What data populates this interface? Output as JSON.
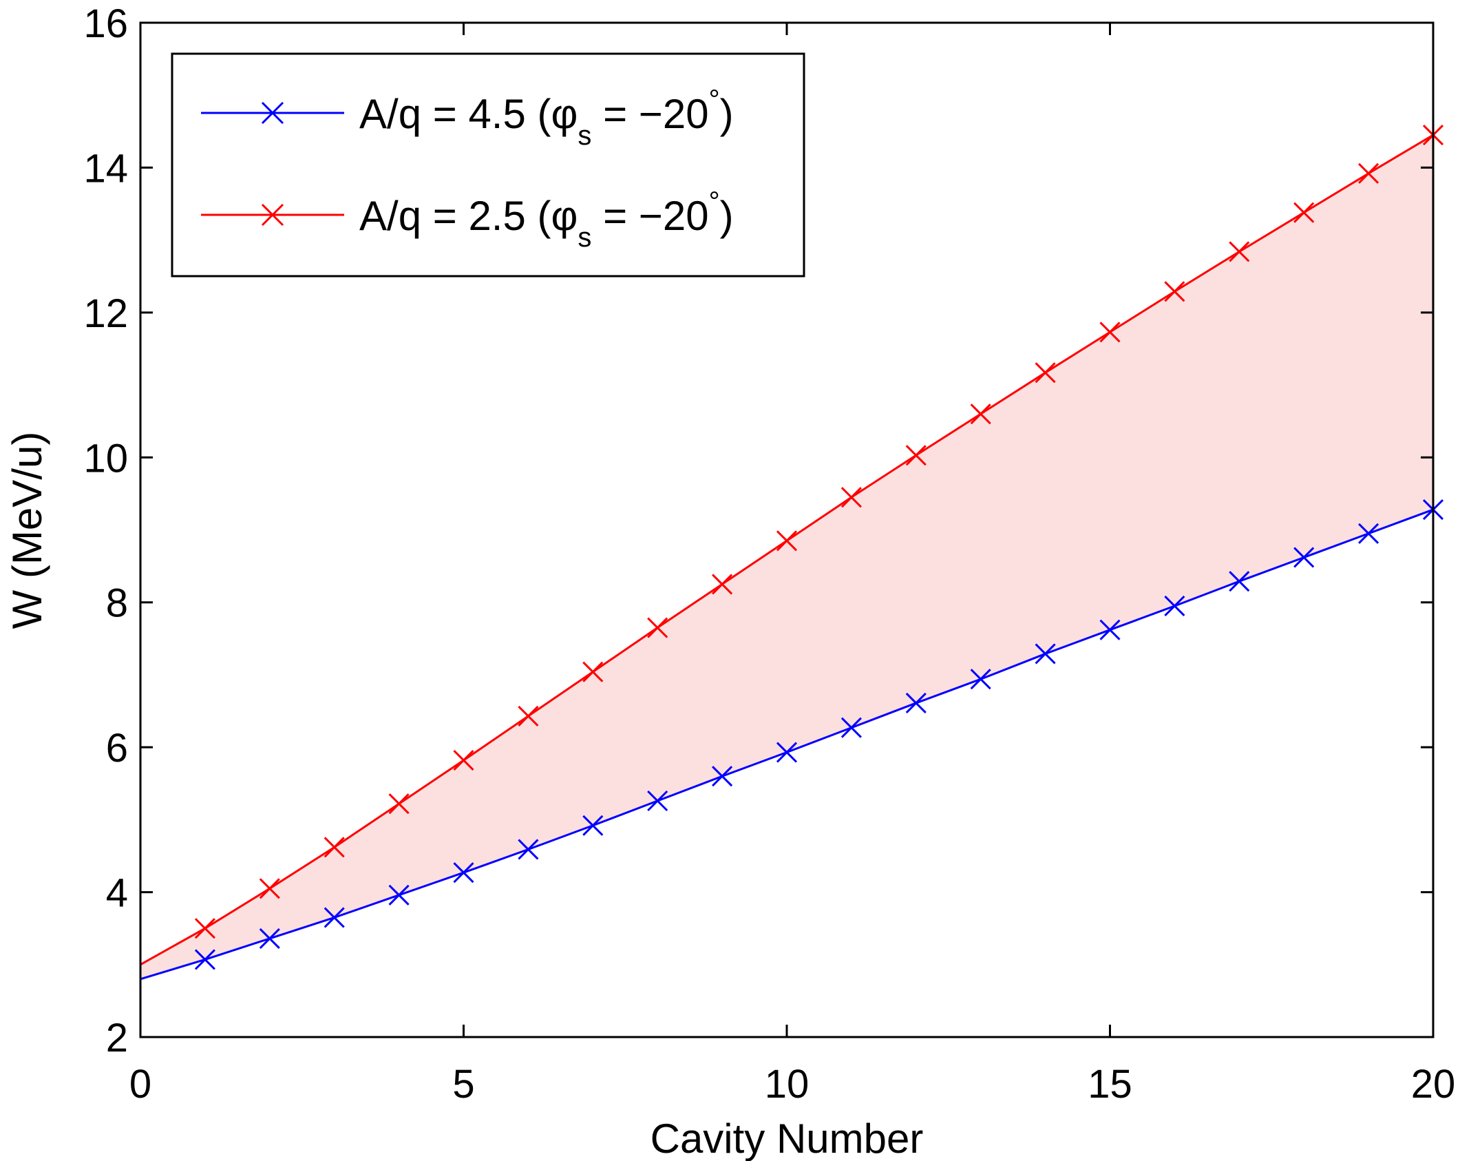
{
  "chart_data": {
    "type": "line",
    "title": "",
    "xlabel": "Cavity Number",
    "ylabel": "W (MeV/u)",
    "xlim": [
      0,
      20
    ],
    "ylim": [
      2,
      16
    ],
    "xticks": [
      0,
      5,
      10,
      15,
      20
    ],
    "yticks": [
      2,
      4,
      6,
      8,
      10,
      12,
      14,
      16
    ],
    "grid": false,
    "legend_position": "top-left",
    "fill_between": {
      "color": "#fce0e0",
      "between": [
        "A/q = 4.5",
        "A/q = 2.5"
      ]
    },
    "series": [
      {
        "name": "A/q = 4.5",
        "legend_main": "A/q = 4.5 (",
        "legend_phi": "φ",
        "legend_sub": "s",
        "legend_eq": " = −20",
        "legend_deg": "°",
        "legend_close": ")",
        "color": "#0000ff",
        "marker": "x",
        "x": [
          0,
          1,
          2,
          3,
          4,
          5,
          6,
          7,
          8,
          9,
          10,
          11,
          12,
          13,
          14,
          15,
          16,
          17,
          18,
          19,
          20
        ],
        "values": [
          2.8,
          3.07,
          3.36,
          3.65,
          3.96,
          4.27,
          4.59,
          4.92,
          5.26,
          5.6,
          5.93,
          6.27,
          6.61,
          6.94,
          7.29,
          7.62,
          7.95,
          8.29,
          8.62,
          8.95,
          9.28
        ],
        "marker_from": 1
      },
      {
        "name": "A/q = 2.5",
        "legend_main": "A/q = 2.5 (",
        "legend_phi": "φ",
        "legend_sub": "s",
        "legend_eq": " = −20",
        "legend_deg": "°",
        "legend_close": ")",
        "color": "#ff0000",
        "marker": "x",
        "x": [
          0,
          1,
          2,
          3,
          4,
          5,
          6,
          7,
          8,
          9,
          10,
          11,
          12,
          13,
          14,
          15,
          16,
          17,
          18,
          19,
          20
        ],
        "values": [
          3.0,
          3.5,
          4.05,
          4.62,
          5.22,
          5.82,
          6.43,
          7.04,
          7.65,
          8.25,
          8.85,
          9.45,
          10.03,
          10.6,
          11.17,
          11.73,
          12.29,
          12.84,
          13.38,
          13.92,
          14.45
        ],
        "marker_from": 1
      }
    ]
  }
}
